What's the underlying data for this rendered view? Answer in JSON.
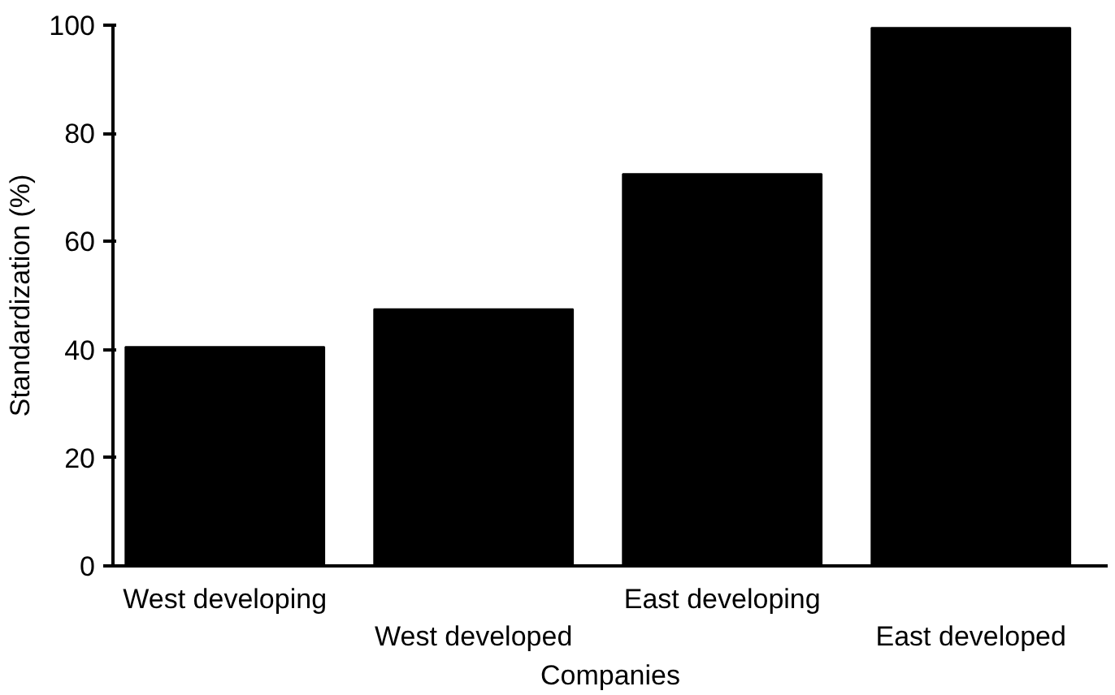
{
  "chart_data": {
    "type": "bar",
    "categories": [
      "West developing",
      "West developed",
      "East developing",
      "East developed"
    ],
    "values": [
      40.5,
      47.5,
      72.5,
      99.5
    ],
    "color": "#000000",
    "xlabel": "Companies",
    "ylabel": "Standardization (%)",
    "ylim": [
      0,
      100
    ],
    "yticks": [
      0,
      20,
      40,
      60,
      80,
      100
    ],
    "grid": false
  }
}
